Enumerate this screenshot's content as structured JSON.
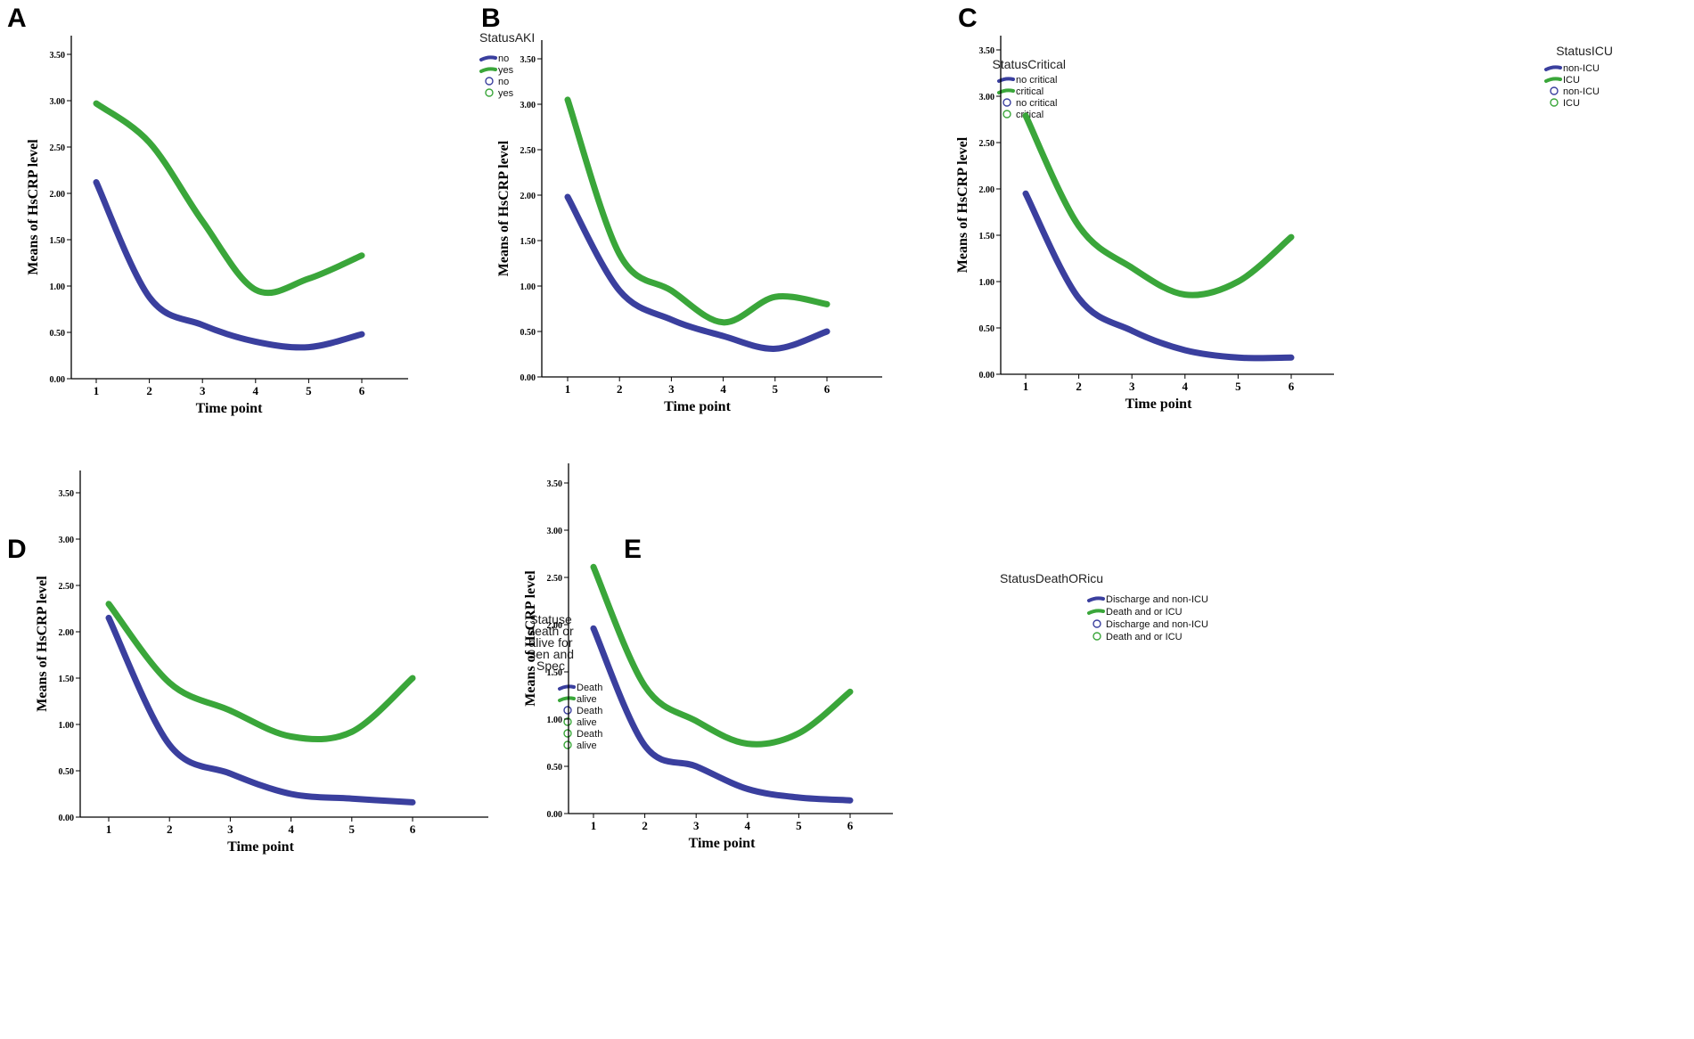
{
  "chart_data": [
    {
      "panel": "A",
      "type": "line",
      "xlabel": "Time point",
      "ylabel": "Means of HsCRP level",
      "x": [
        1,
        2,
        3,
        4,
        5,
        6
      ],
      "xticks": [
        "1",
        "2",
        "3",
        "4",
        "5",
        "6"
      ],
      "yticks": [
        "0.00",
        "0.50",
        "1.00",
        "1.50",
        "2.00",
        "2.50",
        "3.00",
        "3.50"
      ],
      "ylim": [
        0,
        3.7
      ],
      "legend_title": "StatusAKI",
      "legend_items": [
        "no",
        "yes",
        "no",
        "yes"
      ],
      "series": [
        {
          "name": "no",
          "color": "#3a3f9e",
          "values": [
            2.12,
            0.88,
            0.58,
            0.4,
            0.34,
            0.48
          ]
        },
        {
          "name": "yes",
          "color": "#3aa63a",
          "values": [
            2.97,
            2.55,
            1.7,
            0.96,
            1.08,
            1.33
          ]
        }
      ]
    },
    {
      "panel": "B",
      "type": "line",
      "xlabel": "Time point",
      "ylabel": "Means of HsCRP level",
      "x": [
        1,
        2,
        3,
        4,
        5,
        6
      ],
      "xticks": [
        "1",
        "2",
        "3",
        "4",
        "5",
        "6"
      ],
      "yticks": [
        "0.00",
        "0.50",
        "1.00",
        "1.50",
        "2.00",
        "2.50",
        "3.00",
        "3.50"
      ],
      "ylim": [
        0,
        3.6
      ],
      "legend_title": "StatusCritical",
      "legend_items": [
        "no critical",
        "critical",
        "no critical",
        "critical"
      ],
      "series": [
        {
          "name": "no critical",
          "color": "#3a3f9e",
          "values": [
            1.98,
            0.95,
            0.63,
            0.45,
            0.31,
            0.5
          ]
        },
        {
          "name": "critical",
          "color": "#3aa63a",
          "values": [
            3.05,
            1.35,
            0.95,
            0.6,
            0.88,
            0.8
          ]
        }
      ]
    },
    {
      "panel": "C",
      "type": "line",
      "xlabel": "Time point",
      "ylabel": "Means of HsCRP level",
      "x": [
        1,
        2,
        3,
        4,
        5,
        6
      ],
      "xticks": [
        "1",
        "2",
        "3",
        "4",
        "5",
        "6"
      ],
      "yticks": [
        "0.00",
        "0.50",
        "1.00",
        "1.50",
        "2.00",
        "2.50",
        "3.00",
        "3.50"
      ],
      "ylim": [
        0,
        3.6
      ],
      "legend_title": "StatusICU",
      "legend_items": [
        "non-ICU",
        "ICU",
        "non-ICU",
        "ICU"
      ],
      "series": [
        {
          "name": "non-ICU",
          "color": "#3a3f9e",
          "values": [
            1.95,
            0.82,
            0.47,
            0.26,
            0.18,
            0.18
          ]
        },
        {
          "name": "ICU",
          "color": "#3aa63a",
          "values": [
            2.79,
            1.6,
            1.15,
            0.86,
            1.0,
            1.48
          ]
        }
      ]
    },
    {
      "panel": "D",
      "type": "line",
      "xlabel": "Time point",
      "ylabel": "Means of HsCRP level",
      "x": [
        1,
        2,
        3,
        4,
        5,
        6
      ],
      "xticks": [
        "1",
        "2",
        "3",
        "4",
        "5",
        "6"
      ],
      "yticks": [
        "0.00",
        "0.50",
        "1.00",
        "1.50",
        "2.00",
        "2.50",
        "3.00",
        "3.50"
      ],
      "ylim": [
        0,
        3.7
      ],
      "legend_title_lines": [
        "Statuse",
        "death or",
        "alive for",
        "Sen and",
        "Spec"
      ],
      "legend_items": [
        "Death",
        "alive",
        "Death",
        "alive",
        "Death",
        "alive"
      ],
      "series": [
        {
          "name": "Death",
          "color": "#3a3f9e",
          "values": [
            2.15,
            0.78,
            0.47,
            0.25,
            0.2,
            0.16
          ]
        },
        {
          "name": "alive",
          "color": "#3aa63a",
          "values": [
            2.3,
            1.45,
            1.15,
            0.87,
            0.92,
            1.5
          ]
        }
      ]
    },
    {
      "panel": "E",
      "type": "line",
      "xlabel": "Time point",
      "ylabel": "Means of HsCRP level",
      "x": [
        1,
        2,
        3,
        4,
        5,
        6
      ],
      "xticks": [
        "1",
        "2",
        "3",
        "4",
        "5",
        "6"
      ],
      "yticks": [
        "0.00",
        "0.50",
        "1.00",
        "1.50",
        "2.00",
        "2.50",
        "3.00",
        "3.50"
      ],
      "ylim": [
        0,
        3.7
      ],
      "legend_title": "StatusDeathORicu",
      "legend_items": [
        "Discharge and non-ICU",
        "Death and or ICU",
        "Discharge and non-ICU",
        "Death and or ICU"
      ],
      "series": [
        {
          "name": "Discharge and non-ICU",
          "color": "#3a3f9e",
          "values": [
            1.96,
            0.72,
            0.5,
            0.26,
            0.17,
            0.14
          ]
        },
        {
          "name": "Death and or ICU",
          "color": "#3aa63a",
          "values": [
            2.61,
            1.35,
            0.98,
            0.74,
            0.85,
            1.29
          ]
        }
      ]
    }
  ]
}
